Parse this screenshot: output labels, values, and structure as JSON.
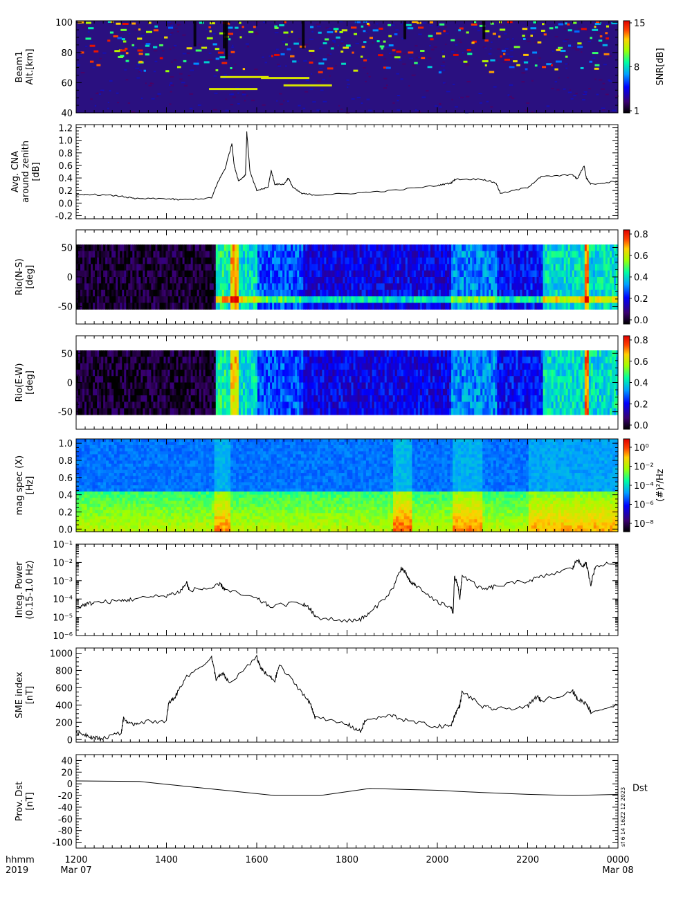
{
  "panels": [
    {
      "id": "beam1",
      "type": "heatmap",
      "ylabel": [
        "Beam1",
        "Alt.[km]"
      ],
      "yticks": [
        "40",
        "60",
        "80",
        "100"
      ],
      "yrange": [
        40,
        101
      ],
      "colorbar": {
        "label": "SNR[dB]",
        "ticks": [
          "1",
          "8",
          "15"
        ],
        "range": [
          1,
          15
        ],
        "palette": "rainbow-black"
      }
    },
    {
      "id": "cna",
      "type": "line",
      "ylabel": [
        "Avg. CNA",
        "around zenith",
        "[dB]"
      ],
      "yticks": [
        "-0.2",
        "0.0",
        "0.2",
        "0.4",
        "0.6",
        "0.8",
        "1.0",
        "1.2"
      ],
      "yrange": [
        -0.25,
        1.25
      ],
      "series": [
        [
          1200,
          0.12
        ],
        [
          1230,
          0.14
        ],
        [
          1300,
          0.11
        ],
        [
          1330,
          0.07
        ],
        [
          1400,
          0.07
        ],
        [
          1430,
          0.05
        ],
        [
          1500,
          0.08
        ],
        [
          1515,
          0.35
        ],
        [
          1530,
          0.55
        ],
        [
          1545,
          0.95
        ],
        [
          1550,
          0.6
        ],
        [
          1560,
          0.35
        ],
        [
          1575,
          0.45
        ],
        [
          1578,
          1.13
        ],
        [
          1585,
          0.5
        ],
        [
          1600,
          0.2
        ],
        [
          1625,
          0.25
        ],
        [
          1632,
          0.52
        ],
        [
          1640,
          0.3
        ],
        [
          1660,
          0.3
        ],
        [
          1670,
          0.4
        ],
        [
          1680,
          0.25
        ],
        [
          1700,
          0.15
        ],
        [
          1730,
          0.13
        ],
        [
          1800,
          0.15
        ],
        [
          1900,
          0.2
        ],
        [
          2000,
          0.28
        ],
        [
          2030,
          0.32
        ],
        [
          2040,
          0.38
        ],
        [
          2100,
          0.38
        ],
        [
          2130,
          0.32
        ],
        [
          2140,
          0.15
        ],
        [
          2200,
          0.25
        ],
        [
          2230,
          0.42
        ],
        [
          2300,
          0.45
        ],
        [
          2310,
          0.38
        ],
        [
          2325,
          0.6
        ],
        [
          2330,
          0.4
        ],
        [
          2340,
          0.3
        ],
        [
          2400,
          0.35
        ]
      ]
    },
    {
      "id": "rio-ns",
      "type": "heatmap",
      "ylabel": [
        "Rio(N-S)",
        "[deg]"
      ],
      "yticks": [
        "-50",
        "0",
        "50"
      ],
      "yrange": [
        -80,
        80
      ],
      "colorbar": {
        "label": "",
        "ticks": [
          "0.0",
          "0.2",
          "0.4",
          "0.6",
          "0.8"
        ],
        "range": [
          0,
          0.85
        ],
        "palette": "rainbow-black"
      }
    },
    {
      "id": "rio-ew",
      "type": "heatmap",
      "ylabel": [
        "Rio(E-W)",
        "[deg]"
      ],
      "yticks": [
        "-50",
        "0",
        "50"
      ],
      "yrange": [
        -80,
        80
      ],
      "colorbar": {
        "label": "",
        "ticks": [
          "0.0",
          "0.2",
          "0.4",
          "0.6",
          "0.8"
        ],
        "range": [
          0,
          0.85
        ],
        "palette": "rainbow-black"
      }
    },
    {
      "id": "mag-spec",
      "type": "heatmap",
      "ylabel": [
        "mag spec (X)",
        "[Hz]"
      ],
      "yticks": [
        "0.0",
        "0.2",
        "0.4",
        "0.6",
        "0.8",
        "1.0"
      ],
      "yrange": [
        -0.03,
        1.05
      ],
      "colorbar": {
        "label": "(#)²/Hz",
        "ticks": [
          "10⁰",
          "10⁻²",
          "10⁻⁴",
          "10⁻⁶",
          "10⁻⁸"
        ],
        "range": [
          -9,
          1
        ],
        "palette": "rainbow-black"
      }
    },
    {
      "id": "integ-power",
      "type": "line",
      "ylabel": [
        "Integ. Power",
        "(0.15-1.0 Hz)"
      ],
      "yticks": [
        "10⁻⁶",
        "10⁻⁵",
        "10⁻⁴",
        "10⁻³",
        "10⁻²",
        "10⁻¹"
      ],
      "yrange": [
        -6,
        -1
      ],
      "log": true,
      "series": [
        [
          1200,
          -4.5
        ],
        [
          1220,
          -4.3
        ],
        [
          1240,
          -4.2
        ],
        [
          1300,
          -4.1
        ],
        [
          1330,
          -4.0
        ],
        [
          1400,
          -3.8
        ],
        [
          1430,
          -3.6
        ],
        [
          1445,
          -3.1
        ],
        [
          1450,
          -3.5
        ],
        [
          1500,
          -3.4
        ],
        [
          1520,
          -3.2
        ],
        [
          1530,
          -3.5
        ],
        [
          1600,
          -4.0
        ],
        [
          1630,
          -4.4
        ],
        [
          1700,
          -4.2
        ],
        [
          1720,
          -4.6
        ],
        [
          1730,
          -5.0
        ],
        [
          1800,
          -5.2
        ],
        [
          1830,
          -5.1
        ],
        [
          1850,
          -4.8
        ],
        [
          1900,
          -3.5
        ],
        [
          1920,
          -2.3
        ],
        [
          1930,
          -2.6
        ],
        [
          1940,
          -3.1
        ],
        [
          1950,
          -3.2
        ],
        [
          2000,
          -4.2
        ],
        [
          2030,
          -4.4
        ],
        [
          2035,
          -4.8
        ],
        [
          2038,
          -2.8
        ],
        [
          2045,
          -3.2
        ],
        [
          2050,
          -4.0
        ],
        [
          2055,
          -2.7
        ],
        [
          2100,
          -3.5
        ],
        [
          2130,
          -3.3
        ],
        [
          2200,
          -3.0
        ],
        [
          2230,
          -2.8
        ],
        [
          2300,
          -2.3
        ],
        [
          2310,
          -1.8
        ],
        [
          2320,
          -2.2
        ],
        [
          2330,
          -2.1
        ],
        [
          2340,
          -3.2
        ],
        [
          2350,
          -2.2
        ],
        [
          2400,
          -2.0
        ]
      ]
    },
    {
      "id": "sme",
      "type": "line",
      "ylabel": [
        "SME index",
        "[nT]"
      ],
      "yticks": [
        "0",
        "200",
        "400",
        "600",
        "800",
        "1000"
      ],
      "yrange": [
        -30,
        1060
      ],
      "series": [
        [
          1200,
          80
        ],
        [
          1220,
          60
        ],
        [
          1240,
          20
        ],
        [
          1255,
          10
        ],
        [
          1300,
          80
        ],
        [
          1305,
          250
        ],
        [
          1320,
          170
        ],
        [
          1340,
          200
        ],
        [
          1400,
          220
        ],
        [
          1405,
          420
        ],
        [
          1420,
          500
        ],
        [
          1440,
          700
        ],
        [
          1500,
          950
        ],
        [
          1510,
          700
        ],
        [
          1525,
          760
        ],
        [
          1540,
          650
        ],
        [
          1600,
          950
        ],
        [
          1610,
          820
        ],
        [
          1620,
          760
        ],
        [
          1640,
          680
        ],
        [
          1650,
          860
        ],
        [
          1700,
          550
        ],
        [
          1720,
          400
        ],
        [
          1730,
          250
        ],
        [
          1800,
          180
        ],
        [
          1830,
          90
        ],
        [
          1840,
          220
        ],
        [
          1900,
          280
        ],
        [
          1930,
          220
        ],
        [
          2000,
          150
        ],
        [
          2030,
          160
        ],
        [
          2040,
          300
        ],
        [
          2050,
          400
        ],
        [
          2055,
          560
        ],
        [
          2100,
          380
        ],
        [
          2130,
          350
        ],
        [
          2200,
          380
        ],
        [
          2220,
          500
        ],
        [
          2230,
          450
        ],
        [
          2300,
          560
        ],
        [
          2310,
          470
        ],
        [
          2330,
          420
        ],
        [
          2340,
          320
        ],
        [
          2400,
          400
        ]
      ]
    },
    {
      "id": "dst",
      "type": "line",
      "ylabel": [
        "Prov. Dst",
        "[nT]"
      ],
      "yticks": [
        "-100",
        "-80",
        "-60",
        "-40",
        "-20",
        "0",
        "20",
        "40"
      ],
      "yrange": [
        -110,
        50
      ],
      "series": [
        [
          1200,
          5
        ],
        [
          1340,
          4
        ],
        [
          1440,
          -4
        ],
        [
          1640,
          -20
        ],
        [
          1740,
          -20
        ],
        [
          1850,
          -8
        ],
        [
          2000,
          -11
        ],
        [
          2100,
          -15
        ],
        [
          2200,
          -18
        ],
        [
          2300,
          -20
        ],
        [
          2400,
          -18
        ]
      ],
      "side_label": "Dst",
      "stamp": "sf 6 14 16Z2 12 2023"
    }
  ],
  "xaxis": {
    "row1_label": "hhmm",
    "row2_label": "2019",
    "ticks": [
      {
        "t": 1200,
        "label": "1200",
        "sub": "Mar 07"
      },
      {
        "t": 1400,
        "label": "1400",
        "sub": ""
      },
      {
        "t": 1600,
        "label": "1600",
        "sub": ""
      },
      {
        "t": 1800,
        "label": "1800",
        "sub": ""
      },
      {
        "t": 2000,
        "label": "2000",
        "sub": ""
      },
      {
        "t": 2200,
        "label": "2200",
        "sub": ""
      },
      {
        "t": 2400,
        "label": "0000",
        "sub": "Mar 08"
      }
    ]
  }
}
